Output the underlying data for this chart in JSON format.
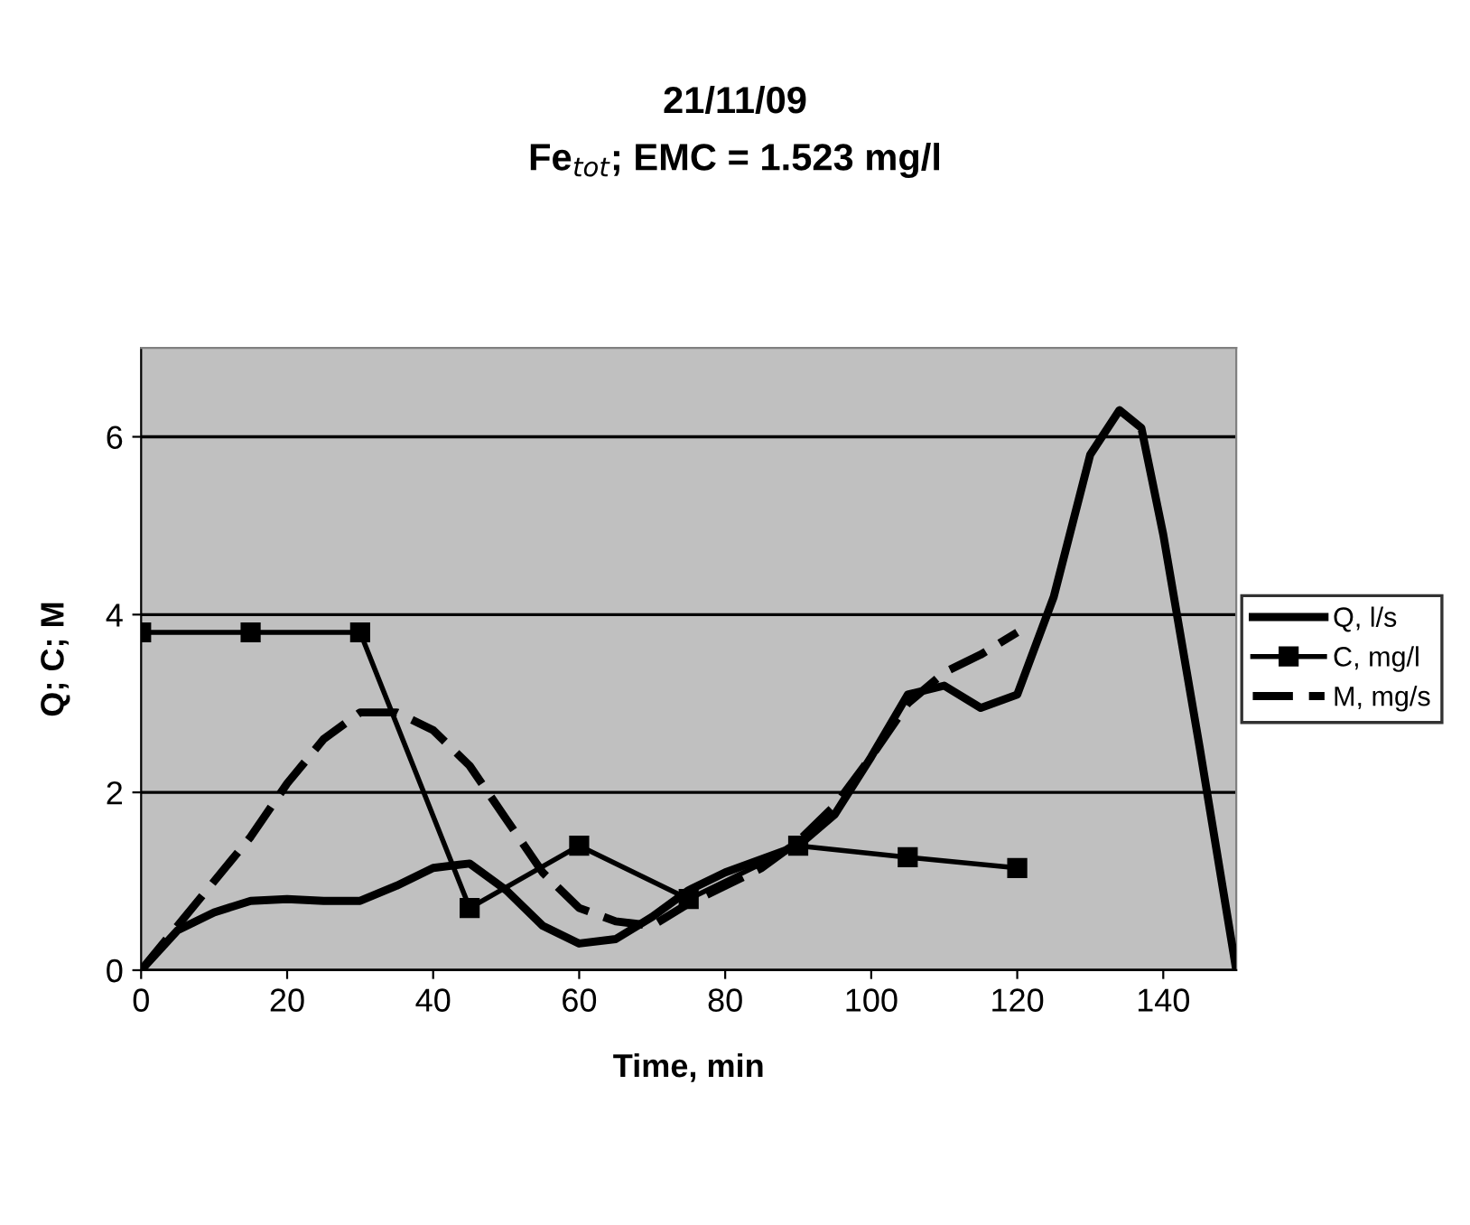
{
  "chart_data": {
    "type": "line",
    "title": "21/11/09\nFe$_{tot}$; EMC = 1.523 mg/l",
    "xlabel": "Time, min",
    "ylabel": "Q; C; M",
    "xlim": [
      0,
      150
    ],
    "xticks": [
      0,
      20,
      40,
      60,
      80,
      100,
      120,
      140
    ],
    "ylim": [
      0,
      7
    ],
    "yticks": [
      0,
      2,
      4,
      6
    ],
    "grid": "y",
    "legend": "right",
    "series": [
      {
        "name": "Q, l/s",
        "color": "#000000",
        "marker": "none",
        "line_style": "solid",
        "x": [
          0,
          5,
          10,
          15,
          20,
          25,
          30,
          35,
          40,
          45,
          50,
          55,
          60,
          65,
          70,
          75,
          80,
          85,
          90,
          95,
          100,
          105,
          110,
          115,
          120,
          125,
          130,
          134,
          137,
          140,
          145,
          150
        ],
        "values": [
          0,
          0.45,
          0.65,
          0.78,
          0.8,
          0.78,
          0.78,
          0.95,
          1.15,
          1.2,
          0.9,
          0.5,
          0.3,
          0.35,
          0.6,
          0.9,
          1.1,
          1.25,
          1.4,
          1.75,
          2.4,
          3.1,
          3.2,
          2.95,
          3.1,
          4.2,
          5.8,
          6.3,
          6.1,
          4.9,
          2.5,
          0
        ]
      },
      {
        "name": "C, mg/l",
        "color": "#000000",
        "marker": "square",
        "line_style": "solid",
        "x": [
          0,
          15,
          30,
          45,
          60,
          75,
          90,
          105,
          120
        ],
        "values": [
          3.8,
          3.8,
          3.8,
          0.7,
          1.4,
          0.8,
          1.4,
          1.27,
          1.15
        ]
      },
      {
        "name": "M, mg/s",
        "color": "#000000",
        "marker": "none",
        "line_style": "dashed",
        "x": [
          0,
          5,
          10,
          15,
          20,
          25,
          30,
          35,
          40,
          45,
          50,
          55,
          60,
          65,
          70,
          75,
          80,
          85,
          90,
          95,
          100,
          105,
          110,
          115,
          120
        ],
        "values": [
          0,
          0.5,
          1.0,
          1.5,
          2.1,
          2.6,
          2.9,
          2.9,
          2.7,
          2.3,
          1.7,
          1.1,
          0.7,
          0.55,
          0.5,
          0.75,
          0.95,
          1.15,
          1.45,
          1.85,
          2.4,
          3.0,
          3.35,
          3.55,
          3.8
        ]
      }
    ]
  }
}
